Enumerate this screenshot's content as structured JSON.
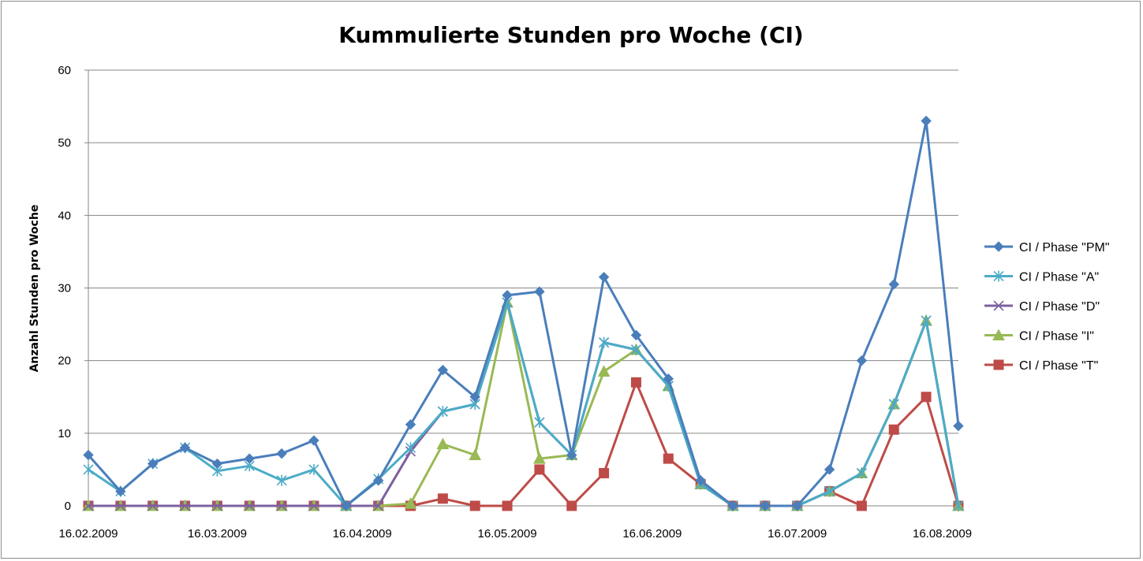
{
  "chart_data": {
    "type": "line",
    "title": "Kummulierte Stunden pro Woche (CI)",
    "xlabel": "",
    "ylabel": "Anzahl Stunden pro Woche",
    "ylim": [
      0,
      60
    ],
    "yticks": [
      "0",
      "10",
      "20",
      "30",
      "40",
      "50",
      "60"
    ],
    "x_tick_labels": [
      {
        "index": 0,
        "label": "16.02.2009"
      },
      {
        "index": 4,
        "label": "16.03.2009"
      },
      {
        "index": 8.5,
        "label": "16.04.2009"
      },
      {
        "index": 13,
        "label": "16.05.2009"
      },
      {
        "index": 17.5,
        "label": "16.06.2009"
      },
      {
        "index": 22,
        "label": "16.07.2009"
      },
      {
        "index": 26.5,
        "label": "16.08.2009"
      }
    ],
    "grid": true,
    "legend_position": "right",
    "series": [
      {
        "name": "CI / Phase \"PM\"",
        "color": "#4a7ebb",
        "marker": "diamond",
        "values": [
          7,
          2,
          5.8,
          8,
          5.8,
          6.5,
          7.2,
          9,
          0,
          3.5,
          11.2,
          18.7,
          15,
          29,
          29.5,
          7,
          31.5,
          23.5,
          17.5,
          3.5,
          0,
          0,
          0,
          5,
          20,
          30.5,
          53,
          11
        ]
      },
      {
        "name": "CI / Phase \"A\"",
        "color": "#4bacc6",
        "marker": "asterisk",
        "values": [
          5,
          2,
          5.8,
          8,
          4.8,
          5.5,
          3.5,
          5,
          0,
          3.7,
          8,
          13,
          14,
          28,
          11.5,
          7,
          22.5,
          21.5,
          16.5,
          3,
          0,
          0,
          0,
          2,
          4.5,
          14,
          25.5,
          0
        ]
      },
      {
        "name": "CI / Phase \"D\"",
        "color": "#7d60a0",
        "marker": "x",
        "values": [
          0,
          0,
          0,
          0,
          0,
          0,
          0,
          0,
          0,
          0,
          7.5,
          13,
          14,
          28,
          11.5,
          7,
          22.5,
          21.5,
          16.5,
          3,
          0,
          0,
          0,
          2,
          4.5,
          14,
          25.5,
          0
        ]
      },
      {
        "name": "CI / Phase \"I\"",
        "color": "#98b954",
        "marker": "triangle",
        "values": [
          0,
          0,
          0,
          0,
          0,
          0,
          0,
          0,
          0,
          0,
          0.3,
          8.5,
          7,
          28,
          6.5,
          7,
          18.5,
          21.5,
          16.5,
          3,
          0,
          0,
          0,
          2,
          4.5,
          14,
          25.5,
          0
        ]
      },
      {
        "name": "CI / Phase \"T\"",
        "color": "#be4b48",
        "marker": "square",
        "values": [
          0,
          0,
          0,
          0,
          0,
          0,
          0,
          0,
          0,
          0,
          0,
          1,
          0,
          0,
          5,
          0,
          4.5,
          17,
          6.5,
          3,
          0,
          0,
          0,
          2,
          0,
          10.5,
          15,
          0
        ]
      }
    ]
  }
}
